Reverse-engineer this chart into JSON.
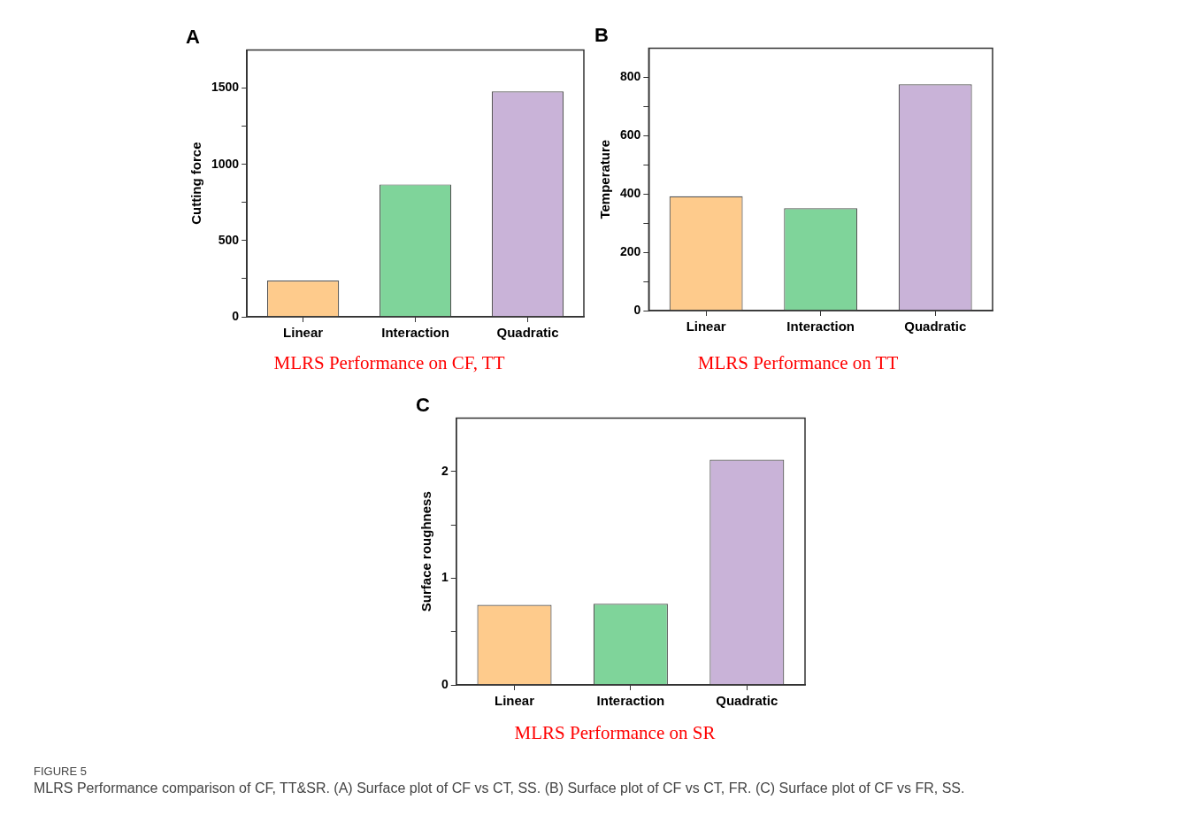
{
  "chart_data": [
    {
      "type": "bar",
      "title": "A",
      "subtitle": "MLRS Performance on CF, TT",
      "ylabel": "Cutting force",
      "categories": [
        "Linear",
        "Interaction",
        "Quadratic"
      ],
      "values": [
        238,
        868,
        1478
      ],
      "colors": [
        "#fecb8c",
        "#7fd49a",
        "#c9b3d8"
      ],
      "ylim": [
        0,
        1750
      ],
      "yticks": [
        0,
        {
          "value": 250,
          "label": null
        },
        500,
        {
          "value": 750,
          "label": null
        },
        1000,
        {
          "value": 1250,
          "label": null
        },
        1500
      ],
      "grid": false
    },
    {
      "type": "bar",
      "title": "B",
      "subtitle": "MLRS Performance on TT",
      "ylabel": "Temperature",
      "categories": [
        "Linear",
        "Interaction",
        "Quadratic"
      ],
      "values": [
        392,
        351,
        776
      ],
      "colors": [
        "#fecb8c",
        "#7fd49a",
        "#c9b3d8"
      ],
      "ylim": [
        0,
        900
      ],
      "yticks": [
        0,
        {
          "value": 100,
          "label": null
        },
        200,
        {
          "value": 300,
          "label": null
        },
        400,
        {
          "value": 500,
          "label": null
        },
        600,
        {
          "value": 700,
          "label": null
        },
        800
      ],
      "grid": false
    },
    {
      "type": "bar",
      "title": "C",
      "subtitle": "MLRS Performance on SR",
      "ylabel": "Surface roughness",
      "categories": [
        "Linear",
        "Interaction",
        "Quadratic"
      ],
      "values": [
        0.75,
        0.76,
        2.11
      ],
      "colors": [
        "#fecb8c",
        "#7fd49a",
        "#c9b3d8"
      ],
      "ylim": [
        0,
        2.5
      ],
      "yticks": [
        0,
        {
          "value": 0.5,
          "label": null
        },
        1,
        {
          "value": 1.5,
          "label": null
        },
        2
      ],
      "grid": false,
      "annotations": [
        "FIGURE 5",
        "MLRS Performance comparison of CF, TT&SR. (A) Surface plot of CF vs CT, SS. (B) Surface plot of CF vs CT, FR. (C) Surface plot of CF vs FR, SS."
      ]
    }
  ]
}
